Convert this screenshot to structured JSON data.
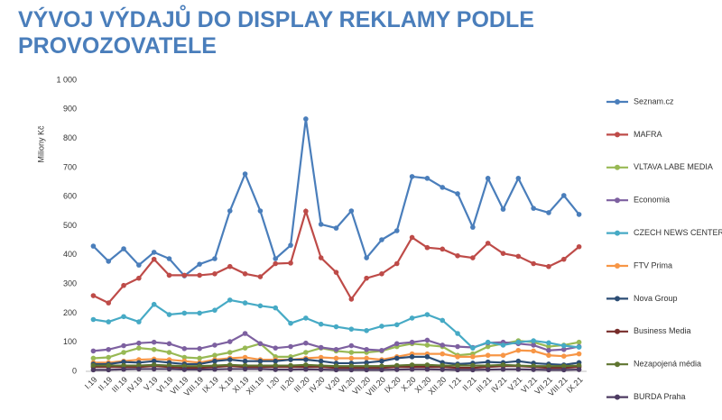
{
  "chart_data": {
    "type": "line",
    "title": "VÝVOJ VÝDAJŮ DO DISPLAY REKLAMY PODLE PROVOZOVATELE",
    "y_label": "Miliony Kč",
    "categories": [
      "I.19",
      "II.19",
      "III.19",
      "IV.19",
      "V.19",
      "VI.19",
      "VII.19",
      "VIII.19",
      "IX.19",
      "X.19",
      "XI.19",
      "XII.19",
      "I.20",
      "II.20",
      "III.20",
      "IV.20",
      "V.20",
      "VI.20",
      "VII.20",
      "VIII.20",
      "IX.20",
      "X.20",
      "XI.20",
      "XII.20",
      "I.21",
      "II.21",
      "III.21",
      "IV.21",
      "V.21",
      "VI.21",
      "VII.21",
      "VIII.21",
      "IX.21"
    ],
    "ylim": [
      0,
      1000
    ],
    "yticks": [
      0,
      100,
      200,
      300,
      400,
      500,
      600,
      700,
      800,
      900,
      {
        "value": 1000,
        "label": "1 000"
      }
    ],
    "grid": false,
    "series": [
      {
        "name": "Seznam.cz",
        "color": "#4a7ebb",
        "values": [
          430,
          378,
          421,
          365,
          409,
          387,
          328,
          368,
          387,
          551,
          678,
          551,
          387,
          433,
          867,
          505,
          492,
          551,
          390,
          452,
          483,
          669,
          663,
          632,
          610,
          495,
          663,
          557,
          663,
          560,
          545,
          604,
          539
        ]
      },
      {
        "name": "MAFRA",
        "color": "#be4b48",
        "values": [
          260,
          235,
          295,
          320,
          385,
          330,
          330,
          330,
          335,
          360,
          335,
          325,
          370,
          372,
          550,
          390,
          340,
          248,
          320,
          335,
          370,
          460,
          425,
          420,
          397,
          390,
          440,
          405,
          395,
          370,
          360,
          385,
          428
        ]
      },
      {
        "name": "VLTAVA LABE MEDIA",
        "color": "#98b954",
        "values": [
          45,
          48,
          65,
          80,
          75,
          65,
          48,
          45,
          55,
          65,
          80,
          95,
          50,
          50,
          65,
          80,
          70,
          65,
          65,
          70,
          85,
          95,
          90,
          85,
          55,
          60,
          85,
          95,
          105,
          100,
          85,
          90,
          100
        ]
      },
      {
        "name": "Economia",
        "color": "#7d60a0",
        "values": [
          70,
          75,
          88,
          97,
          100,
          95,
          78,
          78,
          90,
          102,
          130,
          95,
          80,
          85,
          97,
          82,
          75,
          88,
          75,
          72,
          95,
          100,
          107,
          90,
          85,
          82,
          98,
          100,
          95,
          90,
          72,
          75,
          85
        ]
      },
      {
        "name": "CZECH NEWS CENTER",
        "color": "#46aac5",
        "values": [
          178,
          170,
          188,
          170,
          230,
          195,
          200,
          200,
          210,
          245,
          235,
          225,
          218,
          165,
          183,
          162,
          153,
          145,
          140,
          155,
          160,
          183,
          195,
          175,
          130,
          80,
          100,
          90,
          100,
          105,
          98,
          88,
          83
        ]
      },
      {
        "name": "FTV Prima",
        "color": "#f79646",
        "values": [
          30,
          30,
          35,
          40,
          42,
          40,
          35,
          30,
          40,
          45,
          48,
          40,
          40,
          40,
          45,
          48,
          45,
          45,
          45,
          40,
          50,
          60,
          60,
          60,
          50,
          50,
          55,
          55,
          72,
          70,
          55,
          52,
          60
        ]
      },
      {
        "name": "Nova Group",
        "color": "#2c4d75",
        "values": [
          25,
          25,
          32,
          30,
          35,
          30,
          25,
          25,
          35,
          40,
          35,
          35,
          35,
          40,
          40,
          35,
          28,
          28,
          30,
          35,
          45,
          50,
          50,
          30,
          25,
          28,
          32,
          30,
          35,
          28,
          25,
          22,
          30
        ]
      },
      {
        "name": "Business Media",
        "color": "#772c2a",
        "values": [
          15,
          15,
          15,
          15,
          18,
          15,
          12,
          12,
          15,
          18,
          15,
          15,
          15,
          15,
          15,
          15,
          12,
          12,
          12,
          12,
          15,
          15,
          15,
          15,
          12,
          12,
          15,
          18,
          18,
          15,
          12,
          12,
          15
        ]
      },
      {
        "name": "Nezapojená média",
        "color": "#5f7530",
        "values": [
          20,
          20,
          20,
          20,
          22,
          20,
          18,
          18,
          20,
          22,
          20,
          20,
          20,
          20,
          22,
          20,
          18,
          18,
          18,
          18,
          20,
          22,
          22,
          20,
          20,
          20,
          20,
          22,
          20,
          18,
          18,
          18,
          20
        ]
      },
      {
        "name": "BURDA Praha",
        "color": "#4d3b62",
        "values": [
          5,
          5,
          7,
          8,
          8,
          8,
          6,
          6,
          7,
          8,
          8,
          8,
          6,
          6,
          7,
          6,
          5,
          5,
          5,
          5,
          6,
          7,
          7,
          6,
          5,
          5,
          6,
          7,
          7,
          6,
          5,
          5,
          6
        ]
      }
    ]
  }
}
